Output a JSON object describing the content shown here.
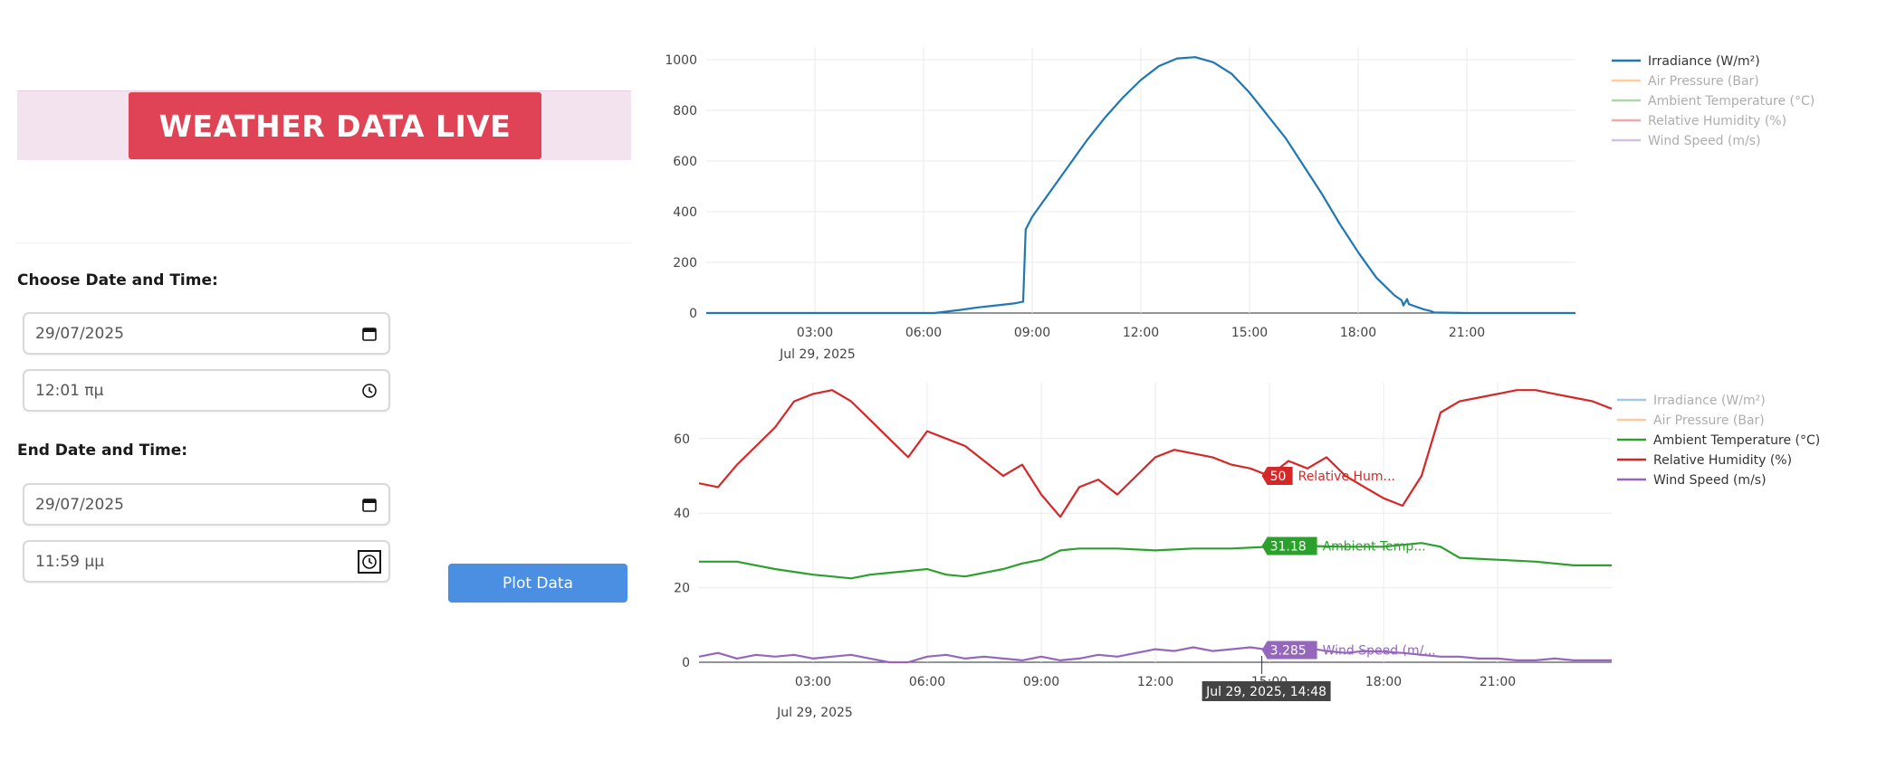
{
  "banner": {
    "title": "WEATHER DATA LIVE"
  },
  "form": {
    "start_label": "Choose Date and Time:",
    "start_date": "29/07/2025",
    "start_time": "12:01 πμ",
    "end_label": "End Date and Time:",
    "end_date": "29/07/2025",
    "end_time": "11:59 μμ",
    "plot_button": "Plot Data"
  },
  "icons": {
    "date": "calendar-icon",
    "time": "clock-icon"
  },
  "chart_data": [
    {
      "type": "line",
      "x_range_hours": [
        0,
        24
      ],
      "x_ticks": [
        "03:00",
        "06:00",
        "09:00",
        "12:00",
        "15:00",
        "18:00",
        "21:00"
      ],
      "x_date_label": "Jul 29, 2025",
      "ylim": [
        0,
        1050
      ],
      "y_ticks": [
        0,
        200,
        400,
        600,
        800,
        1000
      ],
      "grid": true,
      "legend_position": "right",
      "legend": [
        {
          "name": "Irradiance (W/m²)",
          "color": "#1f77b4",
          "active": true
        },
        {
          "name": "Air Pressure (Bar)",
          "color": "#ff7f0e",
          "active": false
        },
        {
          "name": "Ambient Temperature (°C)",
          "color": "#2ca02c",
          "active": false
        },
        {
          "name": "Relative Humidity (%)",
          "color": "#d62728",
          "active": false
        },
        {
          "name": "Wind Speed (m/s)",
          "color": "#9467bd",
          "active": false
        }
      ],
      "series": [
        {
          "name": "Irradiance (W/m²)",
          "color": "#1f77b4",
          "x": [
            0,
            6.3,
            7,
            7.5,
            8,
            8.5,
            8.75,
            8.82,
            9,
            9.5,
            10,
            10.5,
            11,
            11.5,
            12,
            12.5,
            13,
            13.5,
            14,
            14.5,
            15,
            15.5,
            16,
            16.5,
            17,
            17.5,
            18,
            18.5,
            19,
            19.2,
            19.25,
            19.35,
            19.4,
            19.6,
            19.8,
            20,
            20.1,
            21,
            24
          ],
          "values": [
            0,
            0,
            12,
            22,
            30,
            38,
            45,
            330,
            380,
            480,
            580,
            680,
            770,
            850,
            920,
            975,
            1005,
            1010,
            990,
            945,
            870,
            780,
            690,
            580,
            470,
            350,
            240,
            140,
            70,
            50,
            30,
            55,
            35,
            25,
            15,
            8,
            2,
            0,
            0
          ]
        }
      ]
    },
    {
      "type": "line",
      "x_range_hours": [
        0,
        24
      ],
      "x_ticks": [
        "03:00",
        "06:00",
        "09:00",
        "12:00",
        "15:00",
        "18:00",
        "21:00"
      ],
      "x_date_label": "Jul 29, 2025",
      "ylim": [
        0,
        75
      ],
      "y_ticks": [
        0,
        20,
        40,
        60
      ],
      "grid": true,
      "legend_position": "right",
      "legend": [
        {
          "name": "Irradiance (W/m²)",
          "color": "#1f77b4",
          "active": false
        },
        {
          "name": "Air Pressure (Bar)",
          "color": "#ff7f0e",
          "active": false
        },
        {
          "name": "Ambient Temperature (°C)",
          "color": "#2ca02c",
          "active": true
        },
        {
          "name": "Relative Humidity (%)",
          "color": "#d62728",
          "active": true
        },
        {
          "name": "Wind Speed (m/s)",
          "color": "#9467bd",
          "active": true
        }
      ],
      "series": [
        {
          "name": "Relative Humidity (%)",
          "color": "#d62728",
          "x": [
            0,
            0.5,
            1,
            1.5,
            2,
            2.5,
            3,
            3.5,
            4,
            4.5,
            5,
            5.5,
            6,
            6.5,
            7,
            7.5,
            8,
            8.5,
            9,
            9.5,
            10,
            10.5,
            11,
            11.5,
            12,
            12.5,
            13,
            13.5,
            14,
            14.5,
            15,
            15.5,
            16,
            16.5,
            17,
            17.5,
            18,
            18.5,
            19,
            19.5,
            20,
            20.5,
            21,
            21.5,
            22,
            22.5,
            23,
            23.5,
            24
          ],
          "values": [
            48,
            47,
            53,
            58,
            63,
            70,
            72,
            73,
            70,
            65,
            60,
            55,
            62,
            60,
            58,
            54,
            50,
            53,
            45,
            39,
            47,
            49,
            45,
            50,
            55,
            57,
            56,
            55,
            53,
            52,
            50,
            54,
            52,
            55,
            50,
            47,
            44,
            42,
            50,
            67,
            70,
            71,
            72,
            73,
            73,
            72,
            71,
            70,
            68
          ]
        },
        {
          "name": "Ambient Temperature (°C)",
          "color": "#2ca02c",
          "x": [
            0,
            1,
            1.5,
            2,
            3,
            3.5,
            4,
            4.5,
            5,
            5.5,
            6,
            6.5,
            7,
            7.5,
            8,
            8.5,
            9,
            9.5,
            10,
            11,
            12,
            13,
            14,
            15,
            16,
            17,
            18,
            19,
            19.5,
            20,
            21,
            22,
            23,
            24
          ],
          "values": [
            27,
            27,
            26,
            25,
            23.5,
            23,
            22.5,
            23.5,
            24,
            24.5,
            25,
            23.5,
            23,
            24,
            25,
            26.5,
            27.5,
            30,
            30.5,
            30.5,
            30,
            30.5,
            30.5,
            31,
            31.2,
            31,
            31,
            32,
            31,
            28,
            27.5,
            27,
            26,
            26
          ]
        },
        {
          "name": "Wind Speed (m/s)",
          "color": "#9467bd",
          "x": [
            0,
            0.5,
            1,
            1.5,
            2,
            2.5,
            3,
            3.5,
            4,
            4.5,
            5,
            5.5,
            6,
            6.5,
            7,
            7.5,
            8,
            8.5,
            9,
            9.5,
            10,
            10.5,
            11,
            11.5,
            12,
            12.5,
            13,
            13.5,
            14,
            14.5,
            15,
            15.5,
            16,
            16.5,
            17,
            17.5,
            18,
            18.5,
            19,
            19.5,
            20,
            20.5,
            21,
            21.5,
            22,
            22.5,
            23,
            23.5,
            24
          ],
          "values": [
            1.5,
            2.5,
            1,
            2,
            1.5,
            2,
            1,
            1.5,
            2,
            1,
            0,
            0,
            1.5,
            2,
            1,
            1.5,
            1,
            0.5,
            1.5,
            0.5,
            1,
            2,
            1.5,
            2.5,
            3.5,
            3,
            4,
            3,
            3.5,
            4,
            3.3,
            3.5,
            3.8,
            3,
            2.5,
            3,
            2.8,
            2.5,
            2,
            1.5,
            1.5,
            1,
            1,
            0.5,
            0.5,
            1,
            0.5,
            0.5,
            0.5
          ]
        }
      ],
      "hover": {
        "time_label": "Jul 29, 2025, 14:48",
        "x_hours": 14.8,
        "points": [
          {
            "value_text": "50",
            "value": 50,
            "label": "Relative Hum...",
            "color": "#d62728"
          },
          {
            "value_text": "31.18",
            "value": 31.18,
            "label": "Ambient Temp...",
            "color": "#2ca02c"
          },
          {
            "value_text": "3.285",
            "value": 3.285,
            "label": "Wind Speed (m/...",
            "color": "#9467bd"
          }
        ]
      }
    }
  ]
}
